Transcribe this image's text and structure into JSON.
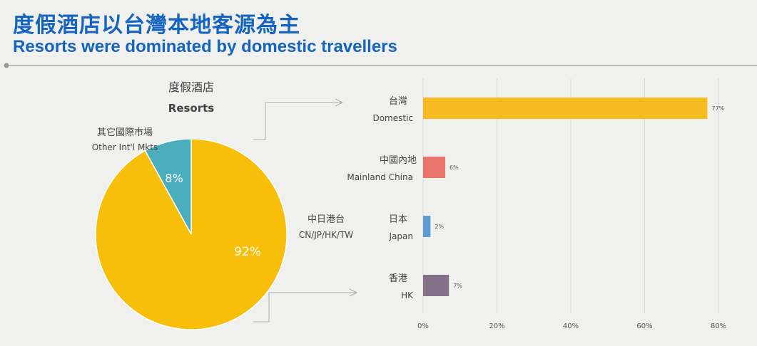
{
  "header": {
    "title_zh": "度假酒店以台灣本地客源為主",
    "title_en": "Resorts were dominated by domestic travellers"
  },
  "chart_data": [
    {
      "type": "pie",
      "title": "度假酒店",
      "subtitle": "Resorts",
      "slices": [
        {
          "label_zh": "中日港台",
          "label_en": "CN/JP/HK/TW",
          "value": 92,
          "label": "92%",
          "color": "#f7be0a"
        },
        {
          "label_zh": "其它國際市場",
          "label_en": "Other Int'l Mkts",
          "value": 8,
          "label": "8%",
          "color": "#4aaebc"
        }
      ]
    },
    {
      "type": "bar",
      "orientation": "horizontal",
      "categories": [
        {
          "zh": "台灣",
          "en": "Domestic"
        },
        {
          "zh": "中國內地",
          "en": "Mainland China"
        },
        {
          "zh": "日本",
          "en": "Japan"
        },
        {
          "zh": "香港",
          "en": "HK"
        }
      ],
      "values": [
        77,
        6,
        2,
        7
      ],
      "value_labels": [
        "77%",
        "6%",
        "2%",
        "7%"
      ],
      "colors": [
        "#f6bb21",
        "#ea7469",
        "#5c9bd4",
        "#857089"
      ],
      "xlim": [
        0,
        80
      ],
      "xticks": [
        "0%",
        "20%",
        "40%",
        "60%",
        "80%"
      ],
      "grid": true
    }
  ]
}
